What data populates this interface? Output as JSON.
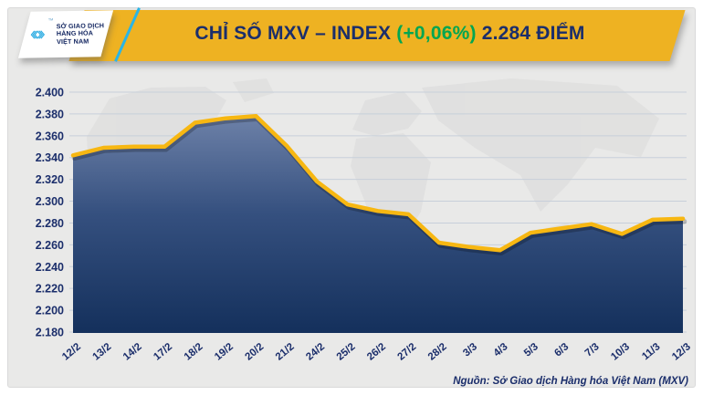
{
  "header": {
    "logo": {
      "line1": "SỞ GIAO DỊCH",
      "line2": "HÀNG HÓA",
      "line3": "VIỆT NAM",
      "trademark": "™",
      "mark_color": "#29abe2"
    },
    "title": {
      "prefix": "CHỈ SỐ MXV – INDEX ",
      "change": "(+0,06%)",
      "suffix": " 2.284 ĐIỂM",
      "banner_color": "#eeb222",
      "text_color": "#1b2e6b",
      "change_color": "#00a651"
    }
  },
  "chart_data": {
    "type": "area",
    "title": "CHỈ SỐ MXV – INDEX (+0,06%) 2.284 ĐIỂM",
    "categories": [
      "12/2",
      "13/2",
      "14/2",
      "17/2",
      "18/2",
      "19/2",
      "20/2",
      "21/2",
      "24/2",
      "25/2",
      "26/2",
      "27/2",
      "28/2",
      "3/3",
      "4/3",
      "5/3",
      "6/3",
      "7/3",
      "10/3",
      "11/3",
      "12/3"
    ],
    "values": [
      2342,
      2349,
      2350,
      2350,
      2372,
      2376,
      2378,
      2351,
      2318,
      2297,
      2291,
      2288,
      2262,
      2258,
      2255,
      2271,
      2275,
      2279,
      2270,
      2283,
      2284
    ],
    "ylim": [
      2180,
      2400
    ],
    "ytick_step": 20,
    "ytick_labels": [
      "2.400",
      "2.380",
      "2.360",
      "2.340",
      "2.320",
      "2.300",
      "2.280",
      "2.260",
      "2.240",
      "2.220",
      "2.200",
      "2.180"
    ],
    "xlabel": "",
    "ylabel": "",
    "grid": true,
    "legend": "none",
    "line_color": "#f7b712",
    "area_fill_top": "#6d81a8",
    "area_fill_mid": "#35507f",
    "area_fill_bottom": "#14305c",
    "grid_color": "#c7cfda",
    "axis_label_color": "#1b2e6b",
    "plot_bg": "#e9e9e8"
  },
  "footer": {
    "source": "Nguồn: Sở Giao dịch Hàng hóa Việt Nam (MXV)"
  }
}
